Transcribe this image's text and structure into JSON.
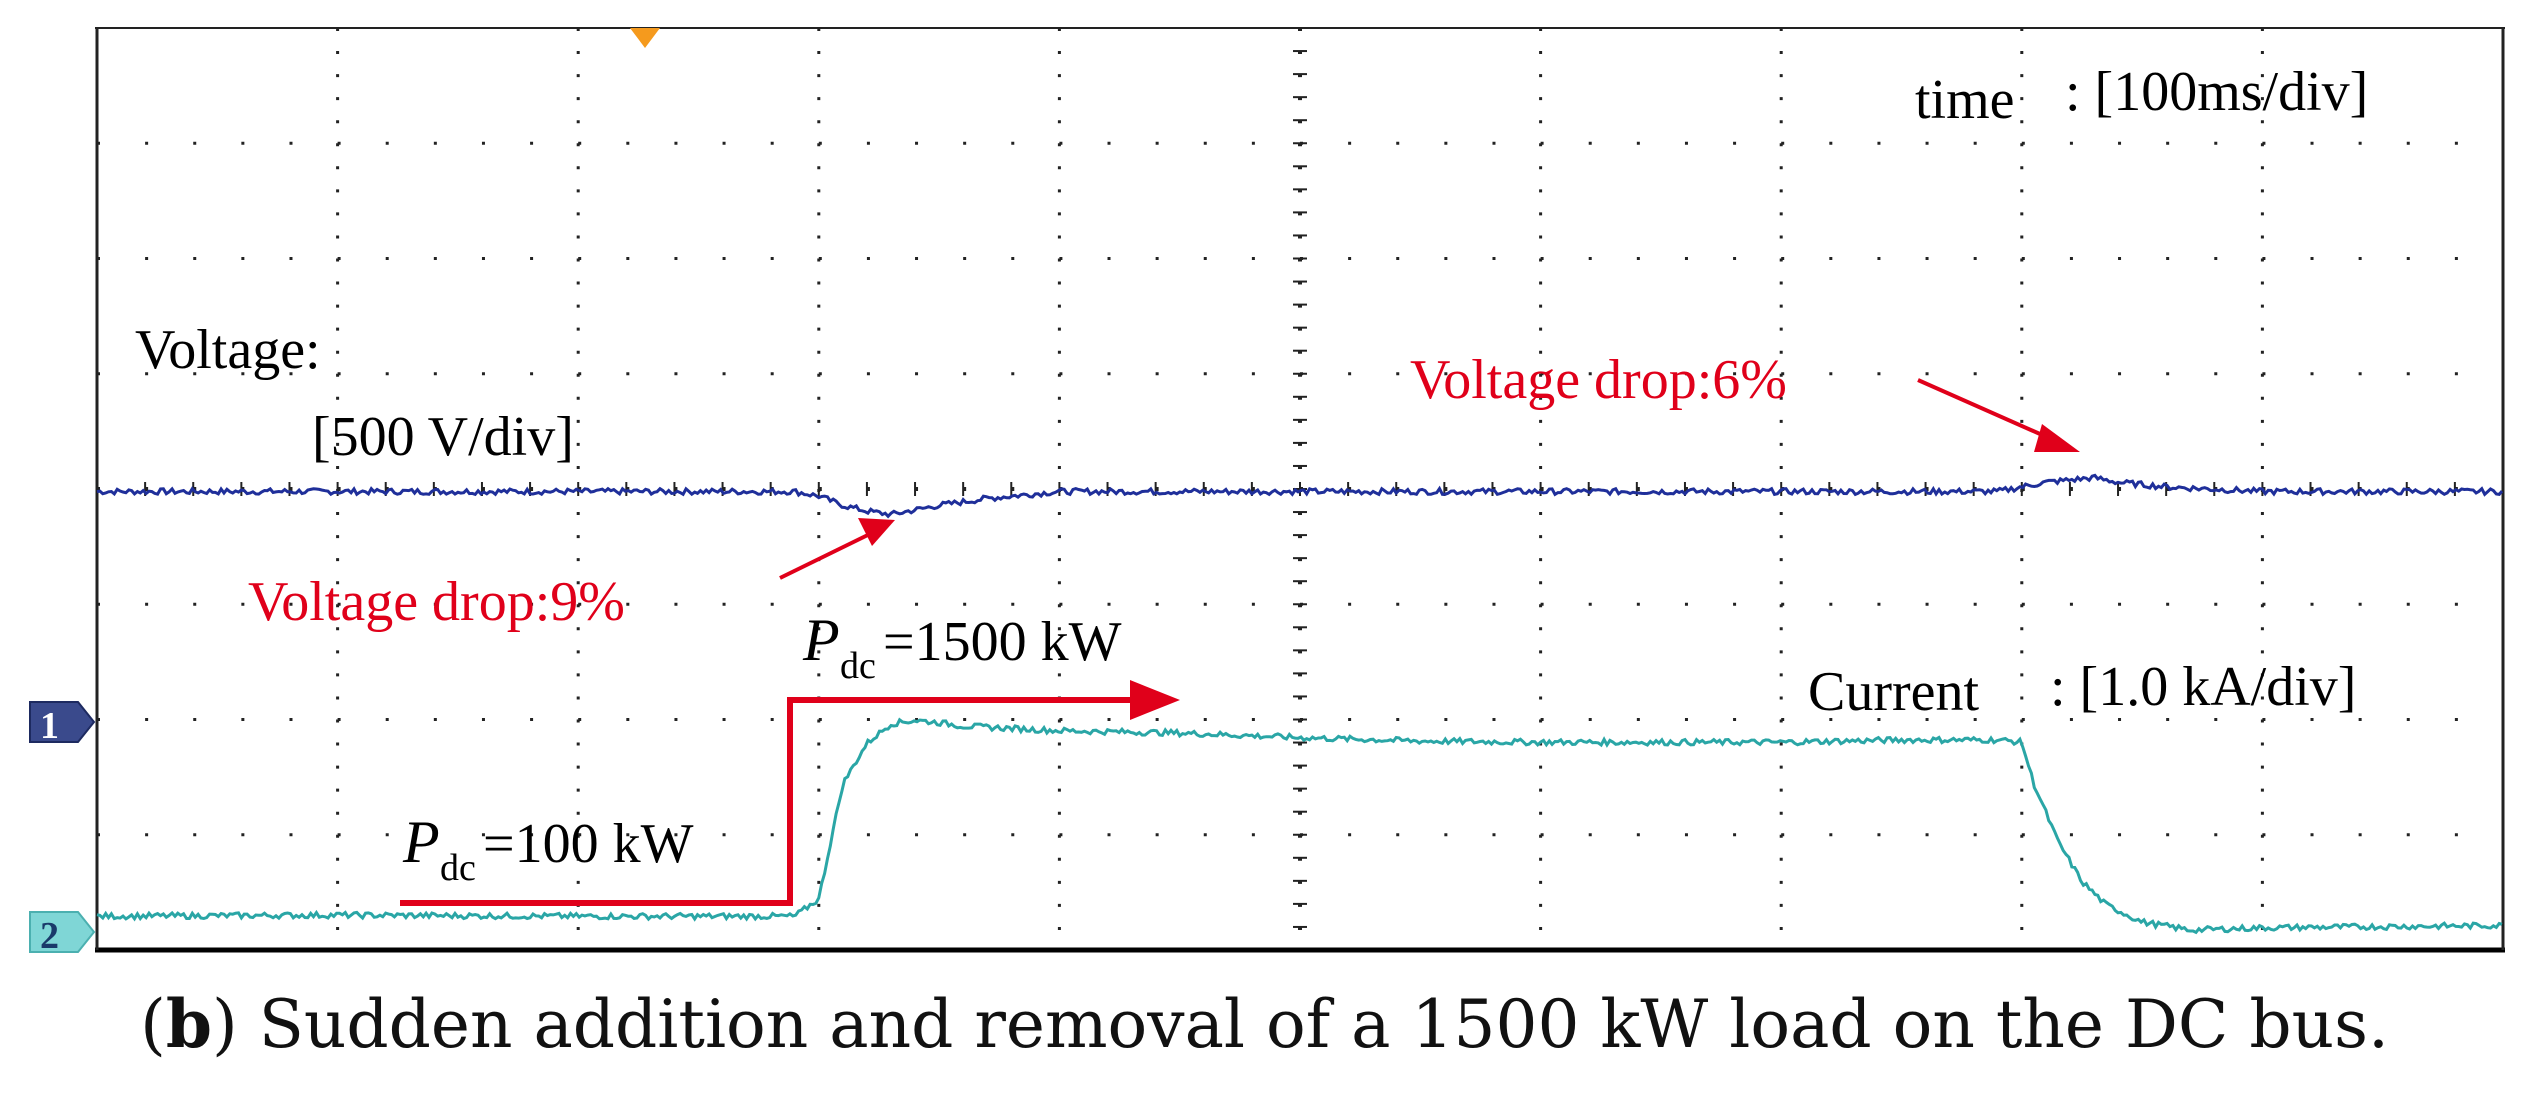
{
  "chart_data": {
    "type": "line",
    "title": "Sudden addition and removal of a 1500 kW load on the DC bus.",
    "x_unit_label": "time",
    "x_scale": ": [100ms/div]",
    "x_range_ms": [
      0,
      1000
    ],
    "series": [
      {
        "name": "Voltage",
        "channel": "1",
        "label": "Voltage:",
        "scale": "[500 V/div]",
        "color": "#1f2f9a",
        "points_ms": [
          0,
          100,
          200,
          290,
          300,
          310,
          320,
          330,
          340,
          350,
          360,
          370,
          380,
          390,
          400,
          420,
          500,
          600,
          700,
          790,
          800,
          810,
          820,
          830,
          840,
          850,
          860,
          870,
          880,
          900,
          1000
        ],
        "values_div": [
          0.0,
          0.0,
          0.0,
          0.0,
          -0.04,
          -0.12,
          -0.17,
          -0.2,
          -0.16,
          -0.12,
          -0.09,
          -0.06,
          -0.04,
          -0.02,
          0.0,
          0.0,
          0.0,
          0.0,
          0.0,
          0.0,
          0.04,
          0.08,
          0.1,
          0.12,
          0.08,
          0.06,
          0.04,
          0.03,
          0.02,
          0.0,
          0.0
        ]
      },
      {
        "name": "Current",
        "channel": "2",
        "label": "Current",
        "scale": ": [1.0 kA/div]",
        "color": "#2aa6a6",
        "points_ms": [
          0,
          100,
          200,
          290,
          300,
          310,
          320,
          330,
          340,
          350,
          360,
          380,
          400,
          450,
          500,
          550,
          600,
          650,
          700,
          750,
          790,
          800,
          805,
          815,
          825,
          835,
          850,
          870,
          900,
          950,
          1000
        ],
        "values_div": [
          0.05,
          0.06,
          0.05,
          0.05,
          0.2,
          1.2,
          1.55,
          1.72,
          1.75,
          1.73,
          1.7,
          1.68,
          1.66,
          1.64,
          1.6,
          1.57,
          1.56,
          1.56,
          1.56,
          1.58,
          1.58,
          1.56,
          1.2,
          0.7,
          0.35,
          0.15,
          0.0,
          -0.07,
          -0.05,
          -0.04,
          -0.03
        ]
      }
    ],
    "annotations": [
      {
        "text": "Voltage drop:9%",
        "color": "#e0001a"
      },
      {
        "text": "Voltage drop:6%",
        "color": "#e0001a"
      },
      {
        "symbol": "P",
        "sub": "dc",
        "text": "=100 kW",
        "value_kw": 100
      },
      {
        "symbol": "P",
        "sub": "dc",
        "text": "=1500 kW",
        "value_kw": 1500
      }
    ],
    "grid": "dotted 10x8 divisions"
  },
  "caption": {
    "letter": "b",
    "text": ") Sudden addition and removal of a 1500 kW load on the DC bus."
  },
  "colors": {
    "voltage": "#1f2f9a",
    "current": "#2aa6a6",
    "annotation": "#e0001a",
    "grid": "#222222"
  }
}
